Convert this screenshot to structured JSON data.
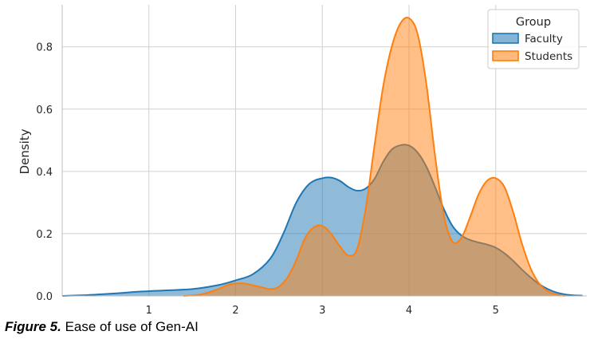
{
  "chart_data": {
    "type": "area",
    "title": "",
    "xlabel": "",
    "ylabel": "Density",
    "xlim": [
      0,
      6.05
    ],
    "ylim": [
      0,
      0.935
    ],
    "x_ticks": [
      1,
      2,
      3,
      4,
      5
    ],
    "y_ticks": [
      0.0,
      0.2,
      0.4,
      0.6,
      0.8
    ],
    "y_tick_labels": [
      "0.0",
      "0.2",
      "0.4",
      "0.6",
      "0.8"
    ],
    "grid": true,
    "legend": {
      "title": "Group",
      "position": "top-right"
    },
    "series": [
      {
        "name": "Faculty",
        "color": "#1f77b4",
        "x": [
          0.0,
          0.3,
          0.6,
          0.9,
          1.2,
          1.5,
          1.8,
          2.0,
          2.2,
          2.4,
          2.55,
          2.7,
          2.85,
          3.0,
          3.1,
          3.2,
          3.3,
          3.4,
          3.5,
          3.6,
          3.7,
          3.8,
          3.9,
          4.0,
          4.1,
          4.2,
          4.3,
          4.4,
          4.5,
          4.6,
          4.7,
          4.8,
          4.9,
          5.0,
          5.1,
          5.2,
          5.3,
          5.4,
          5.5,
          5.6,
          5.7,
          5.8,
          5.9,
          6.0
        ],
        "values": [
          0.0,
          0.003,
          0.008,
          0.014,
          0.018,
          0.022,
          0.035,
          0.05,
          0.07,
          0.12,
          0.2,
          0.3,
          0.36,
          0.378,
          0.38,
          0.37,
          0.35,
          0.338,
          0.345,
          0.375,
          0.43,
          0.47,
          0.484,
          0.483,
          0.46,
          0.415,
          0.35,
          0.28,
          0.225,
          0.195,
          0.18,
          0.172,
          0.165,
          0.155,
          0.137,
          0.113,
          0.085,
          0.06,
          0.038,
          0.022,
          0.011,
          0.005,
          0.002,
          0.001
        ]
      },
      {
        "name": "Students",
        "color": "#ff7f0e",
        "x": [
          1.4,
          1.6,
          1.8,
          1.9,
          2.0,
          2.1,
          2.2,
          2.3,
          2.4,
          2.5,
          2.6,
          2.7,
          2.8,
          2.9,
          3.0,
          3.1,
          3.2,
          3.3,
          3.4,
          3.5,
          3.6,
          3.7,
          3.8,
          3.9,
          4.0,
          4.1,
          4.2,
          4.3,
          4.4,
          4.5,
          4.6,
          4.7,
          4.8,
          4.9,
          5.0,
          5.1,
          5.2,
          5.3,
          5.4,
          5.5,
          5.6,
          5.7,
          5.8
        ],
        "values": [
          0.0,
          0.005,
          0.022,
          0.034,
          0.04,
          0.04,
          0.034,
          0.028,
          0.022,
          0.03,
          0.06,
          0.115,
          0.185,
          0.22,
          0.225,
          0.2,
          0.16,
          0.13,
          0.15,
          0.28,
          0.48,
          0.67,
          0.8,
          0.875,
          0.892,
          0.84,
          0.68,
          0.45,
          0.26,
          0.175,
          0.185,
          0.25,
          0.325,
          0.37,
          0.378,
          0.35,
          0.27,
          0.17,
          0.09,
          0.04,
          0.015,
          0.005,
          0.0
        ]
      }
    ]
  },
  "caption": {
    "label": "Figure 5.",
    "text": " Ease of use of Gen-AI"
  }
}
